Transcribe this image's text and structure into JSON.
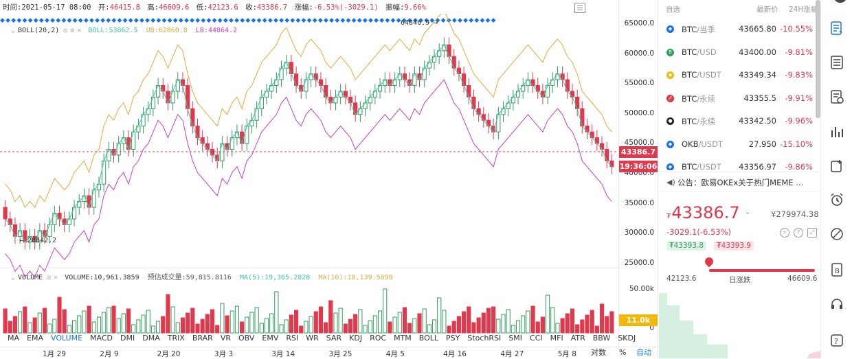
{
  "info_bar": {
    "time_label": "时间:",
    "time": "2021-05-17 08:00",
    "open_label": "开:",
    "open": "46415.8",
    "high_label": "高:",
    "high": "46609.6",
    "low_label": "低:",
    "low": "42123.6",
    "close_label": "收:",
    "close": "43386.7",
    "change_label": "涨幅:",
    "change": "-6.53%(-3029.1)",
    "amplitude_label": "振幅:",
    "amplitude": "9.66%"
  },
  "boll_label": {
    "name": "BOLL(20,2)",
    "boll": "BOLL:53862.5",
    "ub": "UB:62860.8",
    "lb": "LB:44864.2"
  },
  "volume_label": {
    "name": "VOLUME",
    "volume": "VOLUME:10,961.3859",
    "estimate": "预估成交量:59,815.8116",
    "ma5": "MA(5):19,365.2828",
    "ma10": "MA(10):18,139.5098"
  },
  "annotations": {
    "high_marker": "64846.9",
    "low_marker": "28842.2"
  },
  "price_axis": [
    "65000.0",
    "60000.0",
    "55000.0",
    "50000.0",
    "45000.0",
    "40000.0",
    "35000.0",
    "30000.0",
    "25000.0"
  ],
  "volume_axis": [
    "50.00k",
    "0"
  ],
  "current_price_tag": "43386.7",
  "countdown_tag": "19:36:06",
  "volume_tag": "11.0k",
  "indicator_tabs": [
    "MA",
    "EMA",
    "VOLUME",
    "MACD",
    "DMI",
    "DMA",
    "TRIX",
    "BRAR",
    "VR",
    "OBV",
    "EMV",
    "RSI",
    "WR",
    "SAR",
    "KDJ",
    "ROC",
    "MTM",
    "BOLL",
    "PSY",
    "StochRSI",
    "SMI",
    "CCI",
    "MFI",
    "ATR",
    "BBW",
    "SKDJ"
  ],
  "active_tab": "VOLUME",
  "x_axis": [
    "1月 29",
    "2月 9",
    "2月 20",
    "3月 3",
    "3月 14",
    "3月 25",
    "4月 5",
    "4月 16",
    "4月 27",
    "5月 8"
  ],
  "corner": {
    "log": "对数",
    "percent": "%",
    "auto": "自动"
  },
  "watchlist": {
    "header": {
      "name": "自选",
      "price": "最新价",
      "change": "24H涨幅"
    },
    "rows": [
      {
        "base": "BTC",
        "quote": "/当季",
        "price": "43665.80",
        "change": "-10.55%",
        "icon_color": "#1b72e8",
        "icon": "◆"
      },
      {
        "base": "BTC",
        "quote": "/USD",
        "price": "43400.00",
        "change": "-9.81%",
        "icon_color": "#2e9e5b",
        "icon": "B"
      },
      {
        "base": "BTC",
        "quote": "/USDT",
        "price": "43349.34",
        "change": "-9.83%",
        "icon_color": "#f0b90b",
        "icon": "◆"
      },
      {
        "base": "BTC",
        "quote": "/永续",
        "price": "43355.5",
        "change": "-9.91%",
        "icon_color": "#e0394d",
        "icon": "⁄⁄"
      },
      {
        "base": "BTC",
        "quote": "/永续",
        "price": "43342.50",
        "change": "-9.96%",
        "icon_color": "#222222",
        "icon": "●"
      },
      {
        "base": "OKB",
        "quote": "/USDT",
        "price": "27.950",
        "change": "-15.10%",
        "icon_color": "#1b72e8",
        "icon": "◆"
      },
      {
        "base": "BTC",
        "quote": "/USDT",
        "price": "43356.97",
        "change": "-9.86%",
        "icon_color": "#1b72e8",
        "icon": "◆"
      }
    ]
  },
  "notice": "公告：欧易OKEx关于热门MEME ...",
  "ticker": {
    "currency_symbol": "₮",
    "price": "43386.7",
    "cny": "¥279974.38",
    "change": "-3029.1(-6.53%)",
    "bid": "₮43393.8",
    "ask": "₮43393.9",
    "low": "42123.6",
    "high": "46609.6",
    "range_label": "日涨跌"
  },
  "colors": {
    "up": "#2e9e5b",
    "down": "#e0394d",
    "accent": "#1b72e8",
    "ub": "#e4a93b",
    "lb": "#c83dc0",
    "mid": "#3cc7a8"
  }
}
